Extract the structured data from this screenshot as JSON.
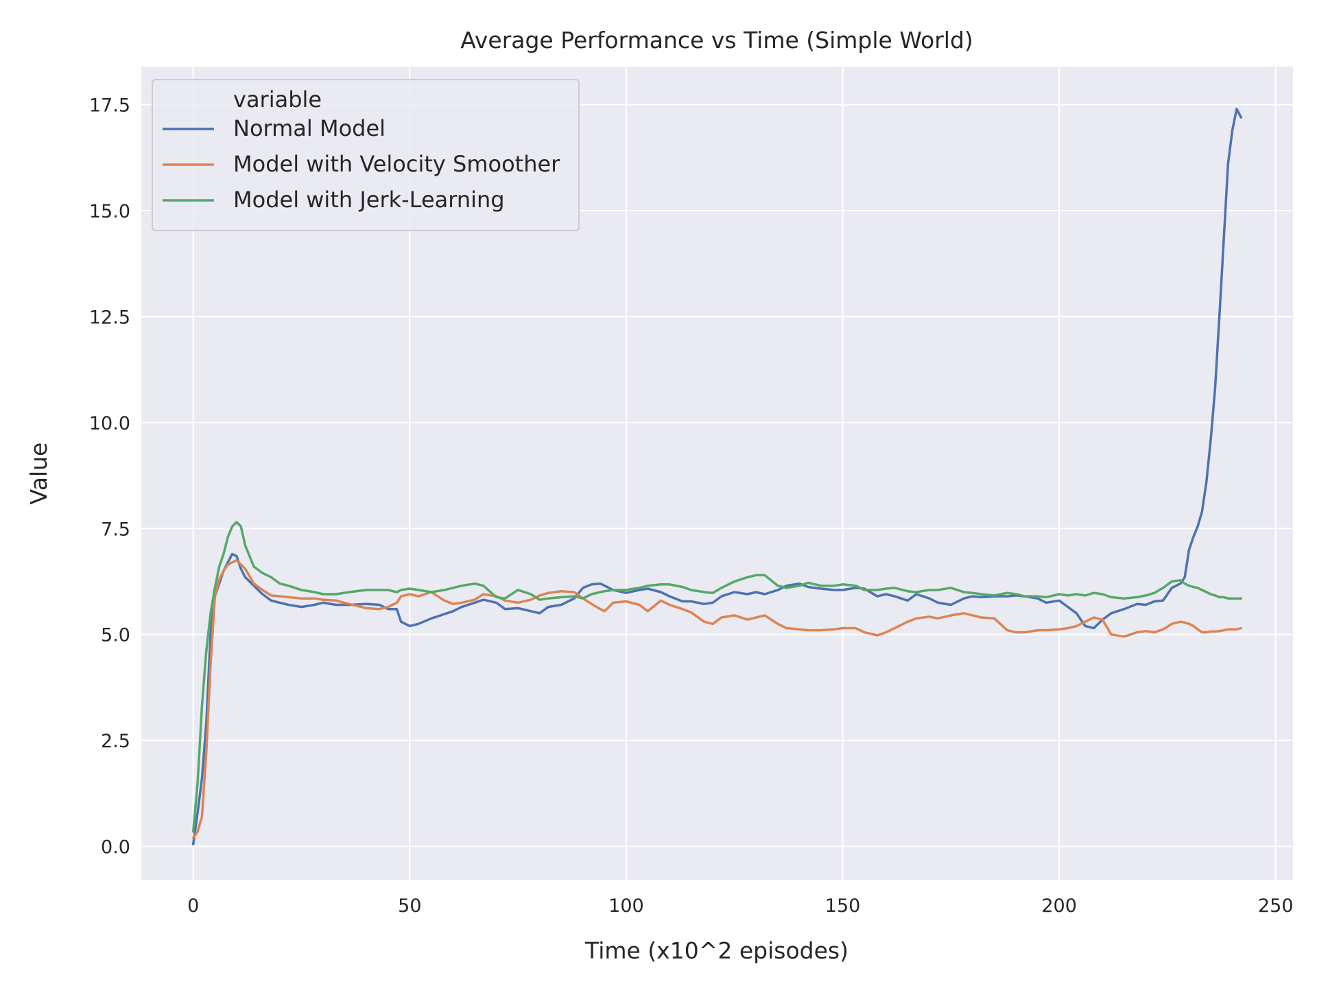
{
  "chart_data": {
    "type": "line",
    "title": "Average Performance vs Time (Simple World)",
    "xlabel": "Time (x10^2 episodes)",
    "ylabel": "Value",
    "xlim": [
      -12,
      254
    ],
    "ylim": [
      -0.8,
      18.4
    ],
    "xticks": [
      0,
      50,
      100,
      150,
      200,
      250
    ],
    "xtick_labels": [
      "0",
      "50",
      "100",
      "150",
      "200",
      "250"
    ],
    "yticks": [
      0.0,
      2.5,
      5.0,
      7.5,
      10.0,
      12.5,
      15.0,
      17.5
    ],
    "ytick_labels": [
      "0.0",
      "2.5",
      "5.0",
      "7.5",
      "10.0",
      "12.5",
      "15.0",
      "17.5"
    ],
    "grid": true,
    "legend": {
      "title": "variable",
      "placement": "top-left"
    },
    "x": [
      0,
      1,
      2,
      3,
      4,
      5,
      6,
      7,
      8,
      9,
      10,
      11,
      12,
      14,
      16,
      18,
      20,
      22,
      25,
      28,
      30,
      33,
      36,
      40,
      43,
      45,
      47,
      48,
      50,
      52,
      55,
      58,
      60,
      62,
      65,
      67,
      70,
      72,
      75,
      78,
      80,
      82,
      85,
      88,
      90,
      92,
      94,
      95,
      97,
      100,
      103,
      105,
      108,
      110,
      113,
      115,
      118,
      120,
      122,
      125,
      128,
      130,
      132,
      135,
      137,
      140,
      142,
      145,
      148,
      150,
      153,
      155,
      158,
      160,
      162,
      165,
      167,
      170,
      172,
      175,
      178,
      180,
      182,
      185,
      188,
      190,
      192,
      195,
      197,
      200,
      202,
      204,
      206,
      208,
      210,
      212,
      215,
      218,
      220,
      222,
      224,
      226,
      228,
      229,
      230,
      231,
      232,
      233,
      234,
      235,
      236,
      237,
      238,
      239,
      240,
      241,
      242
    ],
    "series": [
      {
        "name": "Normal Model",
        "color": "#4c72b0",
        "values": [
          0.05,
          0.8,
          1.6,
          2.9,
          5.0,
          5.9,
          6.2,
          6.5,
          6.7,
          6.9,
          6.85,
          6.55,
          6.35,
          6.15,
          5.95,
          5.8,
          5.75,
          5.7,
          5.65,
          5.7,
          5.75,
          5.7,
          5.7,
          5.72,
          5.7,
          5.6,
          5.6,
          5.3,
          5.2,
          5.25,
          5.38,
          5.48,
          5.55,
          5.65,
          5.75,
          5.82,
          5.75,
          5.6,
          5.62,
          5.55,
          5.5,
          5.65,
          5.7,
          5.85,
          6.1,
          6.18,
          6.2,
          6.15,
          6.05,
          5.98,
          6.05,
          6.08,
          6.0,
          5.9,
          5.78,
          5.78,
          5.72,
          5.75,
          5.9,
          6.0,
          5.95,
          6.0,
          5.95,
          6.05,
          6.15,
          6.2,
          6.12,
          6.08,
          6.05,
          6.05,
          6.1,
          6.08,
          5.9,
          5.95,
          5.9,
          5.8,
          5.95,
          5.85,
          5.75,
          5.7,
          5.85,
          5.9,
          5.88,
          5.9,
          5.9,
          5.92,
          5.9,
          5.85,
          5.75,
          5.8,
          5.65,
          5.5,
          5.2,
          5.15,
          5.35,
          5.5,
          5.6,
          5.72,
          5.7,
          5.78,
          5.8,
          6.1,
          6.2,
          6.35,
          7.0,
          7.3,
          7.55,
          7.9,
          8.6,
          9.6,
          10.8,
          12.5,
          14.3,
          16.1,
          16.9,
          17.4,
          17.2
        ]
      },
      {
        "name": "Model with Velocity Smoother",
        "color": "#dd8452",
        "values": [
          0.2,
          0.35,
          0.7,
          2.2,
          4.3,
          5.9,
          6.3,
          6.5,
          6.65,
          6.7,
          6.75,
          6.65,
          6.55,
          6.2,
          6.05,
          5.92,
          5.9,
          5.88,
          5.85,
          5.85,
          5.82,
          5.8,
          5.72,
          5.62,
          5.6,
          5.65,
          5.75,
          5.9,
          5.95,
          5.9,
          6.0,
          5.8,
          5.72,
          5.75,
          5.82,
          5.95,
          5.9,
          5.8,
          5.75,
          5.82,
          5.92,
          5.98,
          6.02,
          6.0,
          5.85,
          5.72,
          5.6,
          5.55,
          5.75,
          5.78,
          5.7,
          5.55,
          5.8,
          5.7,
          5.6,
          5.52,
          5.3,
          5.25,
          5.4,
          5.45,
          5.35,
          5.4,
          5.45,
          5.25,
          5.15,
          5.12,
          5.1,
          5.1,
          5.12,
          5.15,
          5.15,
          5.05,
          4.98,
          5.05,
          5.15,
          5.3,
          5.38,
          5.42,
          5.38,
          5.45,
          5.5,
          5.45,
          5.4,
          5.38,
          5.1,
          5.05,
          5.05,
          5.1,
          5.1,
          5.12,
          5.15,
          5.2,
          5.3,
          5.4,
          5.35,
          5.0,
          4.95,
          5.05,
          5.08,
          5.05,
          5.12,
          5.25,
          5.3,
          5.28,
          5.25,
          5.2,
          5.12,
          5.05,
          5.05,
          5.07,
          5.07,
          5.08,
          5.1,
          5.12,
          5.12,
          5.12,
          5.15
        ]
      },
      {
        "name": "Model with Jerk-Learning",
        "color": "#55a868",
        "values": [
          0.35,
          1.5,
          3.3,
          4.6,
          5.5,
          6.1,
          6.6,
          6.9,
          7.3,
          7.55,
          7.65,
          7.55,
          7.1,
          6.6,
          6.45,
          6.35,
          6.2,
          6.15,
          6.05,
          6.0,
          5.95,
          5.95,
          6.0,
          6.05,
          6.05,
          6.05,
          6.0,
          6.05,
          6.08,
          6.05,
          6.0,
          6.05,
          6.1,
          6.15,
          6.2,
          6.15,
          5.88,
          5.85,
          6.05,
          5.95,
          5.82,
          5.85,
          5.88,
          5.9,
          5.85,
          5.95,
          6.0,
          6.02,
          6.05,
          6.05,
          6.1,
          6.15,
          6.18,
          6.18,
          6.12,
          6.05,
          6.0,
          5.98,
          6.1,
          6.25,
          6.35,
          6.4,
          6.4,
          6.15,
          6.1,
          6.15,
          6.22,
          6.15,
          6.15,
          6.18,
          6.15,
          6.05,
          6.05,
          6.08,
          6.1,
          6.02,
          6.0,
          6.05,
          6.05,
          6.1,
          6.0,
          5.98,
          5.95,
          5.92,
          5.98,
          5.95,
          5.9,
          5.9,
          5.88,
          5.95,
          5.92,
          5.95,
          5.92,
          5.98,
          5.95,
          5.88,
          5.85,
          5.88,
          5.92,
          5.98,
          6.1,
          6.25,
          6.28,
          6.2,
          6.15,
          6.12,
          6.1,
          6.05,
          6.0,
          5.95,
          5.92,
          5.88,
          5.88,
          5.85,
          5.85,
          5.85,
          5.85
        ]
      }
    ]
  }
}
